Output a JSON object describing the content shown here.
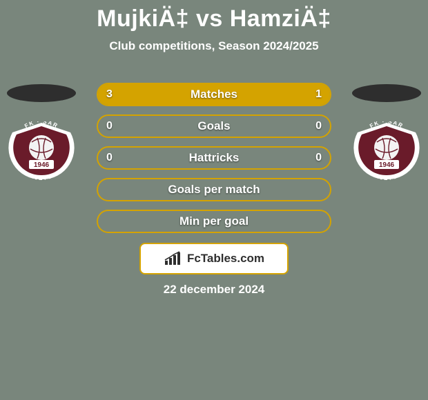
{
  "background_color": "#79867c",
  "title": {
    "text": "MujkiÄ‡ vs HamziÄ‡",
    "color": "#ffffff",
    "fontsize": 34,
    "fontweight": 900
  },
  "subtitle": {
    "text": "Club competitions, Season 2024/2025",
    "color": "#ffffff",
    "fontsize": 17,
    "fontweight": 700
  },
  "accent_color": "#d4a300",
  "bar_border_color": "#d4a300",
  "bar_text_color": "#ffffff",
  "ellipse_color": "#2e2e2e",
  "badge": {
    "ring_color": "#ffffff",
    "body_color": "#6a1b2a",
    "ball_color": "#f3f3f3",
    "banner_color": "#ffffff",
    "year_text": "1946",
    "club_text": "FK SARAJEVO"
  },
  "stats": [
    {
      "label": "Matches",
      "left_value": "3",
      "right_value": "1",
      "left_fill_pct": 75,
      "right_fill_pct": 25
    },
    {
      "label": "Goals",
      "left_value": "0",
      "right_value": "0",
      "left_fill_pct": 0,
      "right_fill_pct": 0
    },
    {
      "label": "Hattricks",
      "left_value": "0",
      "right_value": "0",
      "left_fill_pct": 0,
      "right_fill_pct": 0
    },
    {
      "label": "Goals per match",
      "left_value": "",
      "right_value": "",
      "left_fill_pct": 0,
      "right_fill_pct": 0
    },
    {
      "label": "Min per goal",
      "left_value": "",
      "right_value": "",
      "left_fill_pct": 0,
      "right_fill_pct": 0
    }
  ],
  "brand": {
    "text": "FcTables.com",
    "box_bg": "#ffffff",
    "box_border": "#d4a300",
    "text_color": "#2e2e2e",
    "chart_color": "#2e2e2e"
  },
  "footer_date": "22 december 2024"
}
